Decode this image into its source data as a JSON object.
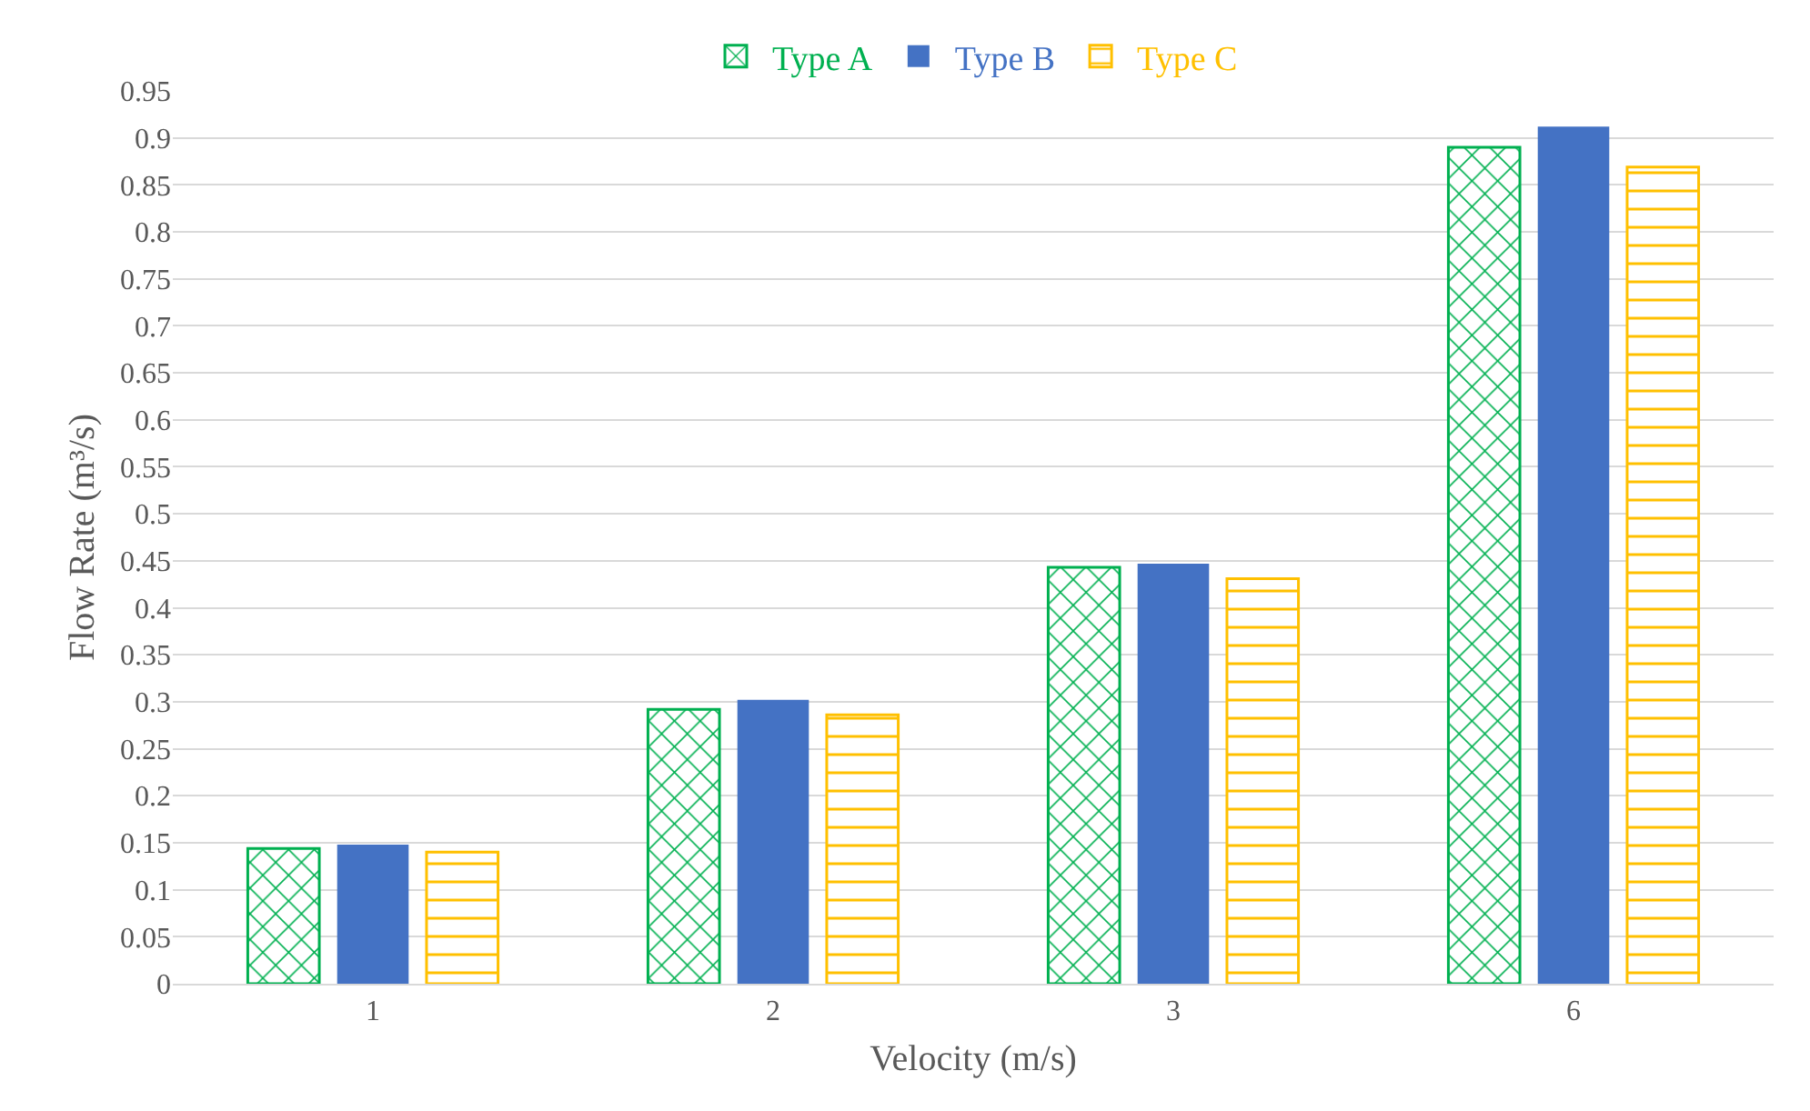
{
  "chart_data": {
    "type": "bar",
    "xlabel": "Velocity (m/s)",
    "ylabel": "Flow Rate (m³/s)",
    "categories": [
      "1",
      "2",
      "3",
      "6"
    ],
    "series": [
      {
        "name": "Type A",
        "color": "#00b050",
        "values": [
          0.144,
          0.292,
          0.443,
          0.89
        ]
      },
      {
        "name": "Type B",
        "color": "#4472c4",
        "values": [
          0.148,
          0.302,
          0.447,
          0.912
        ]
      },
      {
        "name": "Type C",
        "color": "#ffc000",
        "values": [
          0.14,
          0.286,
          0.431,
          0.869
        ]
      }
    ],
    "ylim": [
      0,
      0.95
    ],
    "yticks": [
      0,
      0.05,
      0.1,
      0.15,
      0.2,
      0.25,
      0.3,
      0.35,
      0.4,
      0.45,
      0.5,
      0.55,
      0.6,
      0.65,
      0.7,
      0.75,
      0.8,
      0.85,
      0.9,
      0.95
    ],
    "grid": "y",
    "legend": "top"
  }
}
